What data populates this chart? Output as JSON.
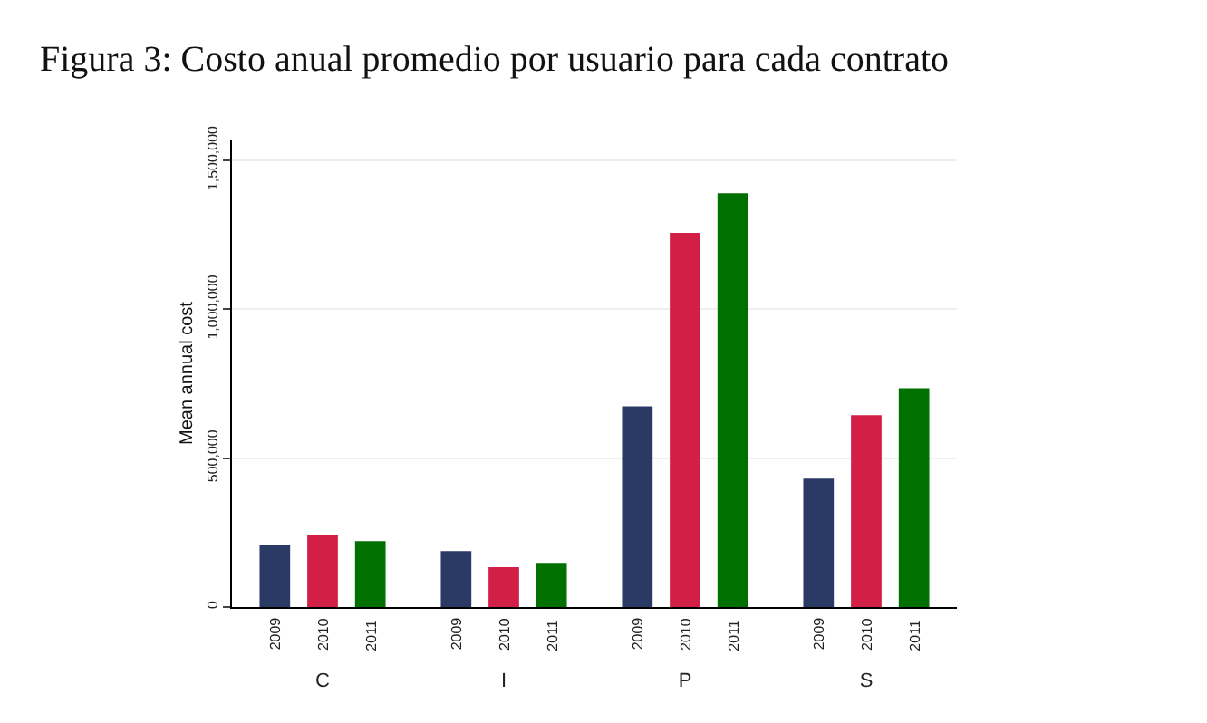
{
  "chart_data": {
    "type": "bar",
    "title": "Figura 3: Costo anual promedio por usuario para cada contrato",
    "ylabel": "Mean annual cost",
    "categories": [
      "C",
      "I",
      "P",
      "S"
    ],
    "series": [
      {
        "name": "2009",
        "color": "#2a3a64",
        "values": [
          208000,
          188000,
          674000,
          431000
        ]
      },
      {
        "name": "2010",
        "color": "#d21f46",
        "values": [
          243000,
          134000,
          1257000,
          644000
        ]
      },
      {
        "name": "2011",
        "color": "#007000",
        "values": [
          221000,
          148000,
          1390000,
          735000
        ]
      }
    ],
    "ylim": [
      0,
      1570000
    ],
    "yticks": [
      0,
      {
        "value": 500000,
        "label": "500,000"
      },
      {
        "value": 1000000,
        "label": "1,000,000"
      },
      {
        "value": 1500000,
        "label": "1,500,000"
      }
    ],
    "grid": "y",
    "legend": false
  }
}
